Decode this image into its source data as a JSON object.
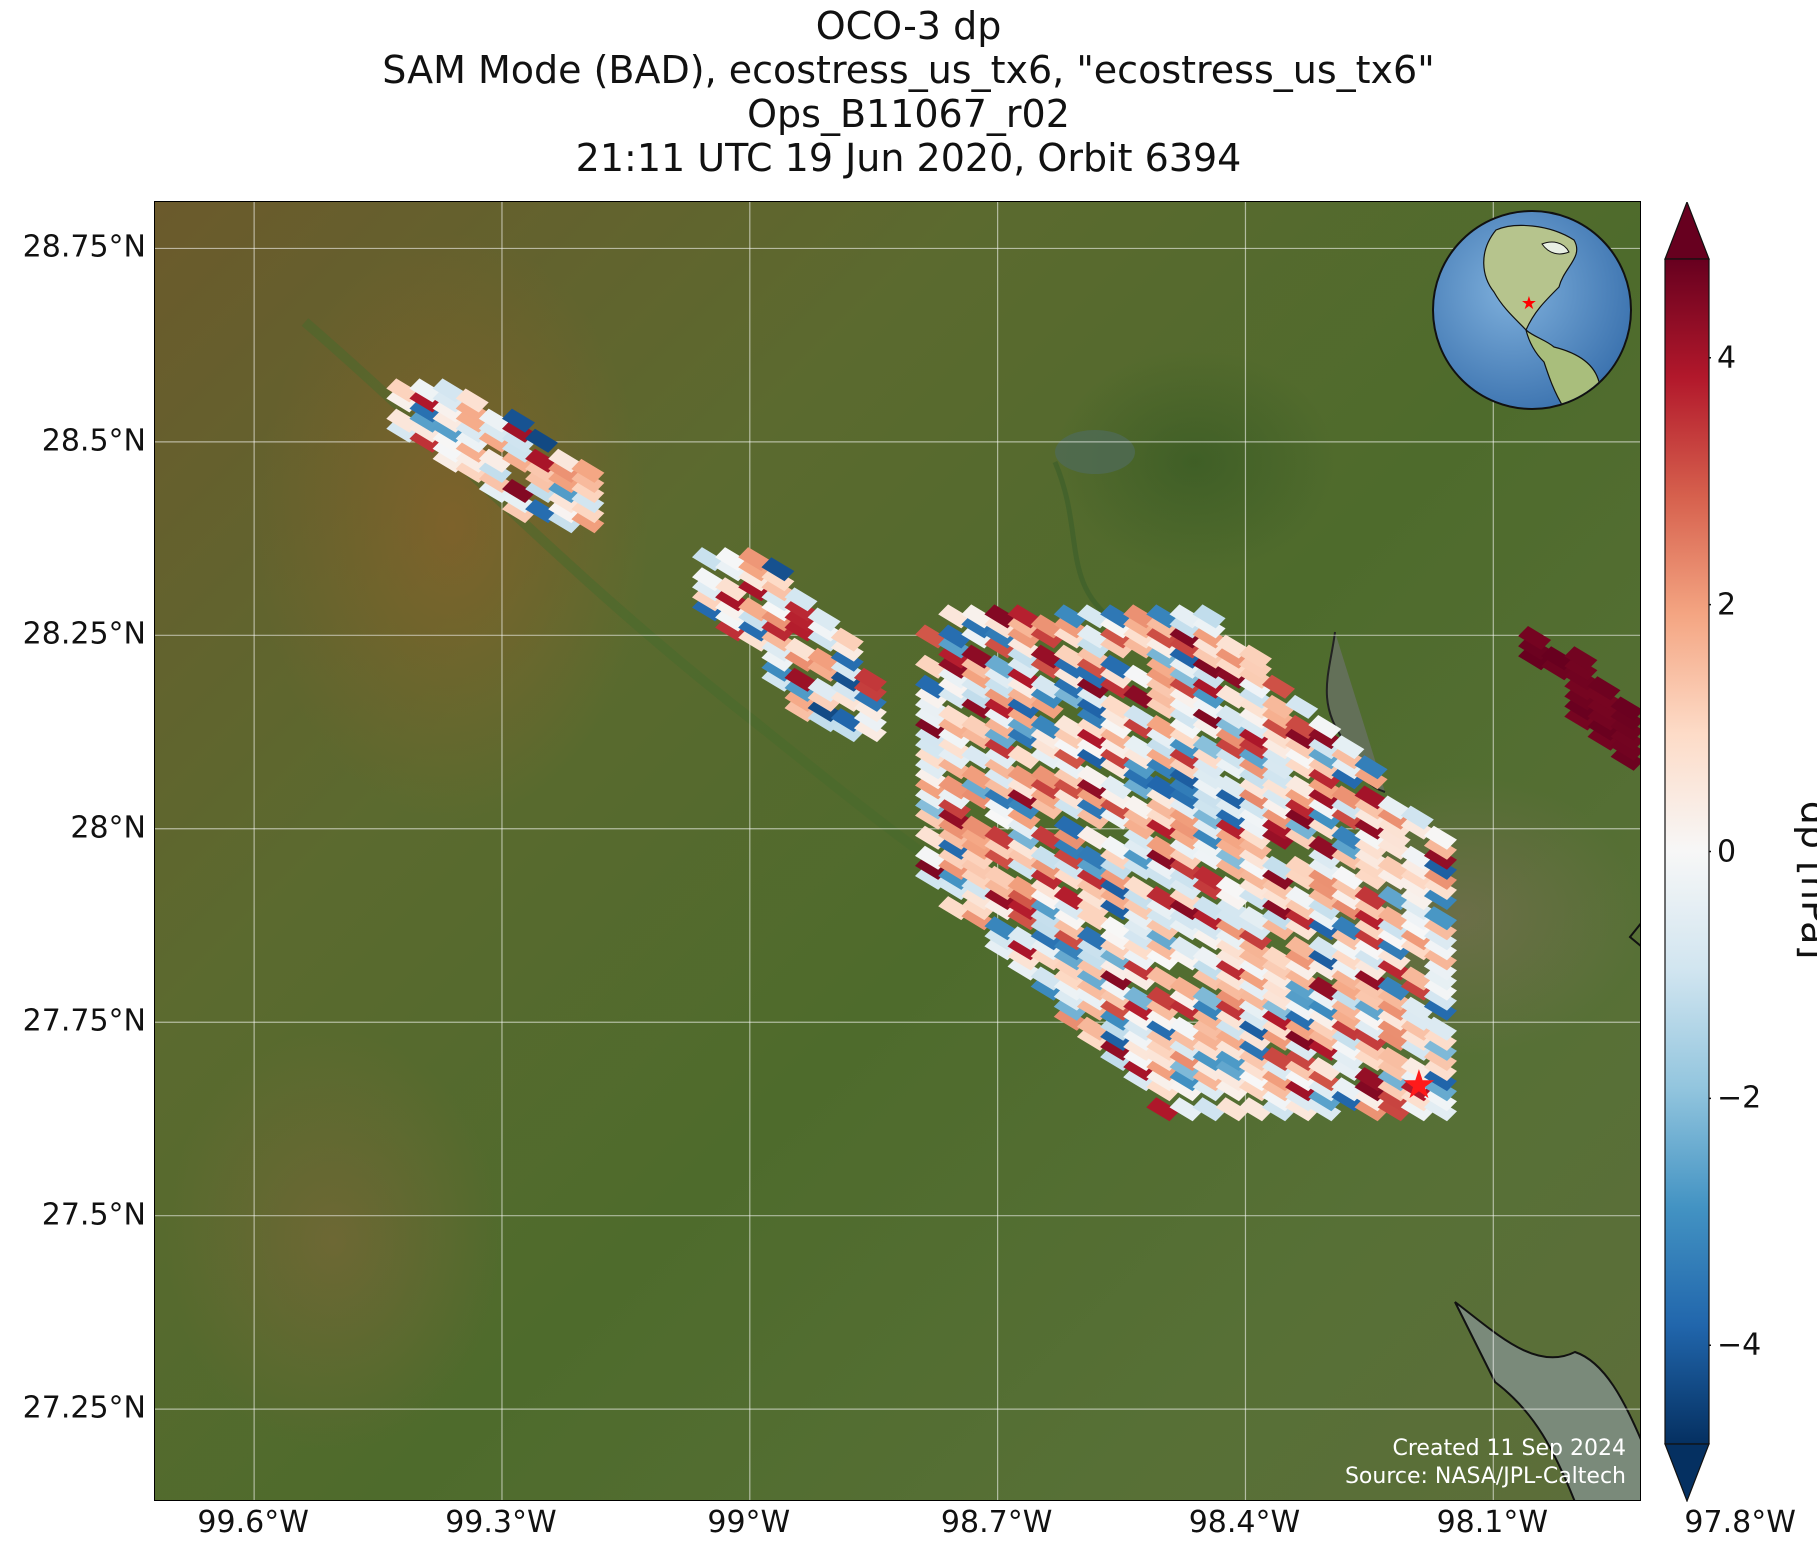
{
  "title": {
    "line1": "OCO-3 dp",
    "line2": "SAM Mode (BAD), ecostress_us_tx6, \"ecostress_us_tx6\"",
    "line3": "Ops_B11067_r02",
    "line4": "21:11 UTC 19 Jun 2020, Orbit 6394"
  },
  "map": {
    "lon_range": [
      -99.72,
      -97.92
    ],
    "lat_range": [
      27.13,
      28.81
    ],
    "lon_ticks": [
      {
        "value": -99.6,
        "label": "99.6°W"
      },
      {
        "value": -99.3,
        "label": "99.3°W"
      },
      {
        "value": -99.0,
        "label": "99°W"
      },
      {
        "value": -98.7,
        "label": "98.7°W"
      },
      {
        "value": -98.4,
        "label": "98.4°W"
      },
      {
        "value": -98.1,
        "label": "98.1°W"
      },
      {
        "value": -97.8,
        "label": "97.8°W"
      }
    ],
    "lat_ticks": [
      {
        "value": 28.75,
        "label": "28.75°N"
      },
      {
        "value": 28.5,
        "label": "28.5°N"
      },
      {
        "value": 28.25,
        "label": "28.25°N"
      },
      {
        "value": 28.0,
        "label": "28°N"
      },
      {
        "value": 27.75,
        "label": "27.75°N"
      },
      {
        "value": 27.5,
        "label": "27.5°N"
      },
      {
        "value": 27.25,
        "label": "27.25°N"
      }
    ],
    "target": {
      "lon": -98.19,
      "lat": 27.67,
      "color": "#ff1a1a"
    },
    "basemap": "satellite imagery"
  },
  "colorbar": {
    "label": "dp [hPa]",
    "range": [
      -4.8,
      4.8
    ],
    "colormap": "RdBu_r",
    "ticks": [
      {
        "value": 4,
        "label": "4"
      },
      {
        "value": 2,
        "label": "2"
      },
      {
        "value": 0,
        "label": "0"
      },
      {
        "value": -2,
        "label": "−2"
      },
      {
        "value": -4,
        "label": "−4"
      }
    ],
    "extend": "both"
  },
  "chart_data": {
    "type": "heatmap",
    "description_units": "soundings as lon/lat with dp value in hPa",
    "clusters": [
      {
        "name": "northwest strip",
        "lon_range": [
          -99.44,
          -99.2
        ],
        "lat_range": [
          28.4,
          28.57
        ],
        "dp_range": [
          -4.5,
          4.5
        ]
      },
      {
        "name": "middle strip",
        "lon_range": [
          -99.07,
          -98.87
        ],
        "lat_range": [
          28.13,
          28.36
        ],
        "dp_range": [
          -4.5,
          4.5
        ]
      },
      {
        "name": "main swath",
        "lon_range": [
          -98.8,
          -98.18
        ],
        "lat_range": [
          27.64,
          28.28
        ],
        "dp_range": [
          -4.0,
          4.5
        ]
      },
      {
        "name": "east patches",
        "lon_range": [
          -98.07,
          -97.93
        ],
        "lat_range": [
          28.08,
          28.26
        ],
        "dp_range": [
          4.0,
          4.8
        ]
      }
    ]
  },
  "credits": {
    "line1": "Created 11 Sep 2024",
    "line2": "Source: NASA/JPL-Caltech"
  }
}
